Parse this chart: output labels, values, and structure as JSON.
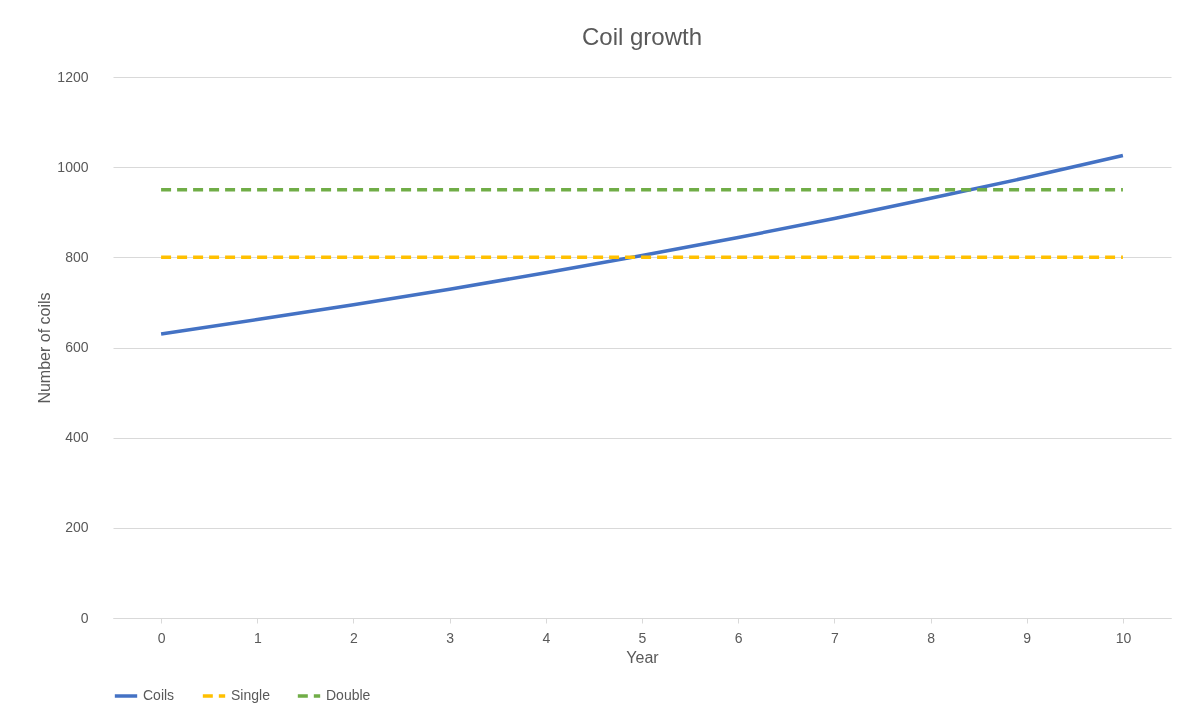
{
  "chart_data": {
    "type": "line",
    "title": "Coil growth",
    "xlabel": "Year",
    "ylabel": "Number  of coils",
    "categories": [
      "0",
      "1",
      "2",
      "3",
      "4",
      "5",
      "6",
      "7",
      "8",
      "9",
      "10"
    ],
    "series": [
      {
        "name": "Coils",
        "color": "#4472c4",
        "line_style": "solid",
        "values": [
          630,
          662,
          695,
          729,
          766,
          804,
          844,
          886,
          931,
          977,
          1026
        ]
      },
      {
        "name": "Single",
        "color": "#ffc000",
        "line_style": "dashed",
        "values": [
          800,
          800,
          800,
          800,
          800,
          800,
          800,
          800,
          800,
          800,
          800
        ]
      },
      {
        "name": "Double",
        "color": "#70ad47",
        "line_style": "dashed",
        "values": [
          950,
          950,
          950,
          950,
          950,
          950,
          950,
          950,
          950,
          950,
          950
        ]
      }
    ],
    "ylim": [
      0,
      1200
    ],
    "yticks": [
      0,
      200,
      400,
      600,
      800,
      1000,
      1200
    ],
    "grid": "y",
    "legend": "bottom",
    "marker": "none"
  }
}
